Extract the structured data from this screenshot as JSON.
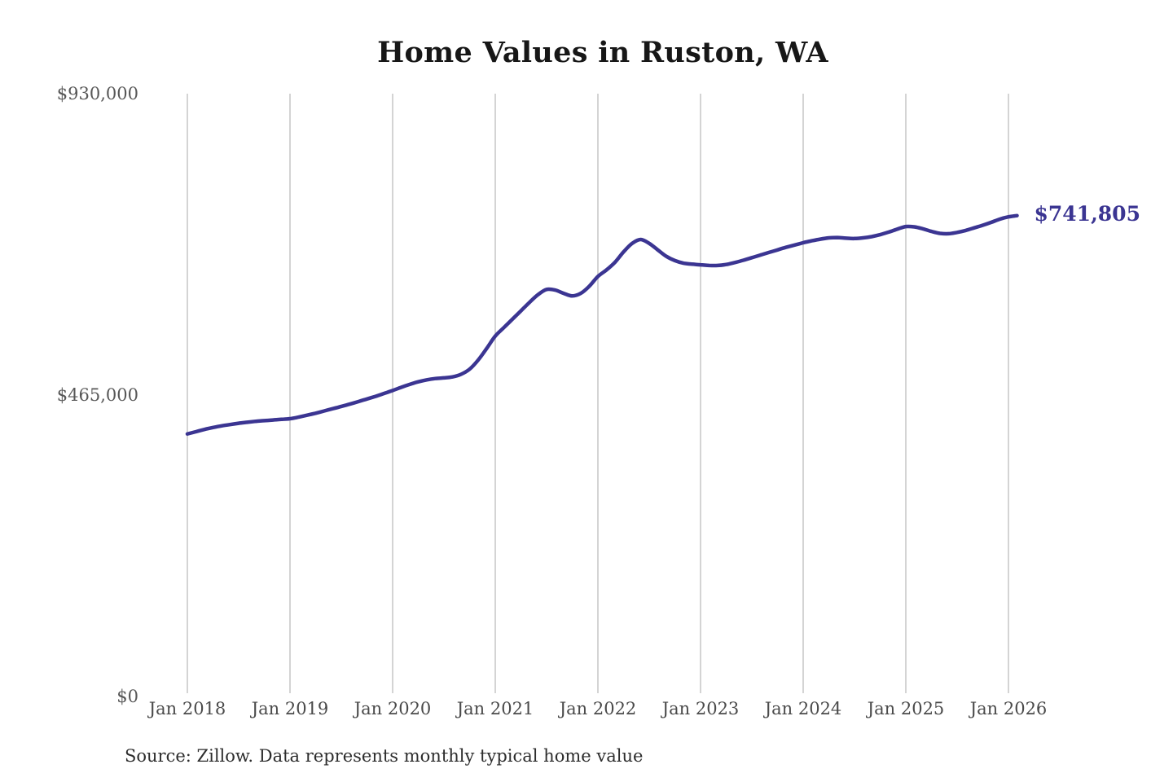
{
  "header": {
    "title": "Home Values in Ruston, WA"
  },
  "annotation": {
    "latest_value_label": "$741,805"
  },
  "footer": {
    "source_note": "Source: Zillow. Data represents monthly typical home value"
  },
  "colors": {
    "line": "#3b3592",
    "latest_label": "#3b3592",
    "gridline": "#cacaca",
    "axis_text": "#4a4a4a",
    "title_text": "#171717",
    "background": "#ffffff"
  },
  "chart_data": {
    "type": "line",
    "title": "Home Values in Ruston, WA",
    "xlabel": "",
    "ylabel": "",
    "ylim": [
      0,
      930000
    ],
    "grid": "vertical-only",
    "legend": "none",
    "x_tick_labels": [
      "Jan 2018",
      "Jan 2019",
      "Jan 2020",
      "Jan 2021",
      "Jan 2022",
      "Jan 2023",
      "Jan 2024",
      "Jan 2025",
      "Jan 2026"
    ],
    "y_ticks": [
      {
        "label": "$0",
        "value": 0
      },
      {
        "label": "$465,000",
        "value": 465000
      },
      {
        "label": "$930,000",
        "value": 930000
      }
    ],
    "latest": {
      "label": "$741,805",
      "value": 741805
    },
    "series": [
      {
        "name": "Monthly typical home value",
        "start": "Jan 2018",
        "interval": "monthly",
        "end": "Feb 2026",
        "values": [
          405000,
          408500,
          412000,
          415000,
          417500,
          419500,
          421500,
          423000,
          424500,
          425500,
          426500,
          427500,
          428500,
          431000,
          434000,
          437000,
          440500,
          444000,
          447500,
          451000,
          455000,
          459000,
          463000,
          467500,
          472000,
          477000,
          481500,
          485500,
          488500,
          490500,
          491500,
          493000,
          497000,
          505000,
          519000,
          537000,
          556000,
          569000,
          582000,
          595000,
          608000,
          620000,
          628000,
          627000,
          622000,
          618000,
          622000,
          633000,
          648000,
          658000,
          670000,
          686000,
          699000,
          705000,
          699000,
          689000,
          679000,
          672500,
          668500,
          667000,
          666000,
          665000,
          665000,
          666500,
          669500,
          673000,
          677000,
          681000,
          685000,
          689000,
          693000,
          696500,
          700000,
          703000,
          705500,
          707500,
          708000,
          707000,
          706500,
          707500,
          709500,
          712500,
          716500,
          721000,
          725000,
          724500,
          721500,
          717500,
          714500,
          714000,
          716000,
          719000,
          723000,
          727000,
          731500,
          736500,
          740000,
          741805
        ]
      }
    ]
  }
}
